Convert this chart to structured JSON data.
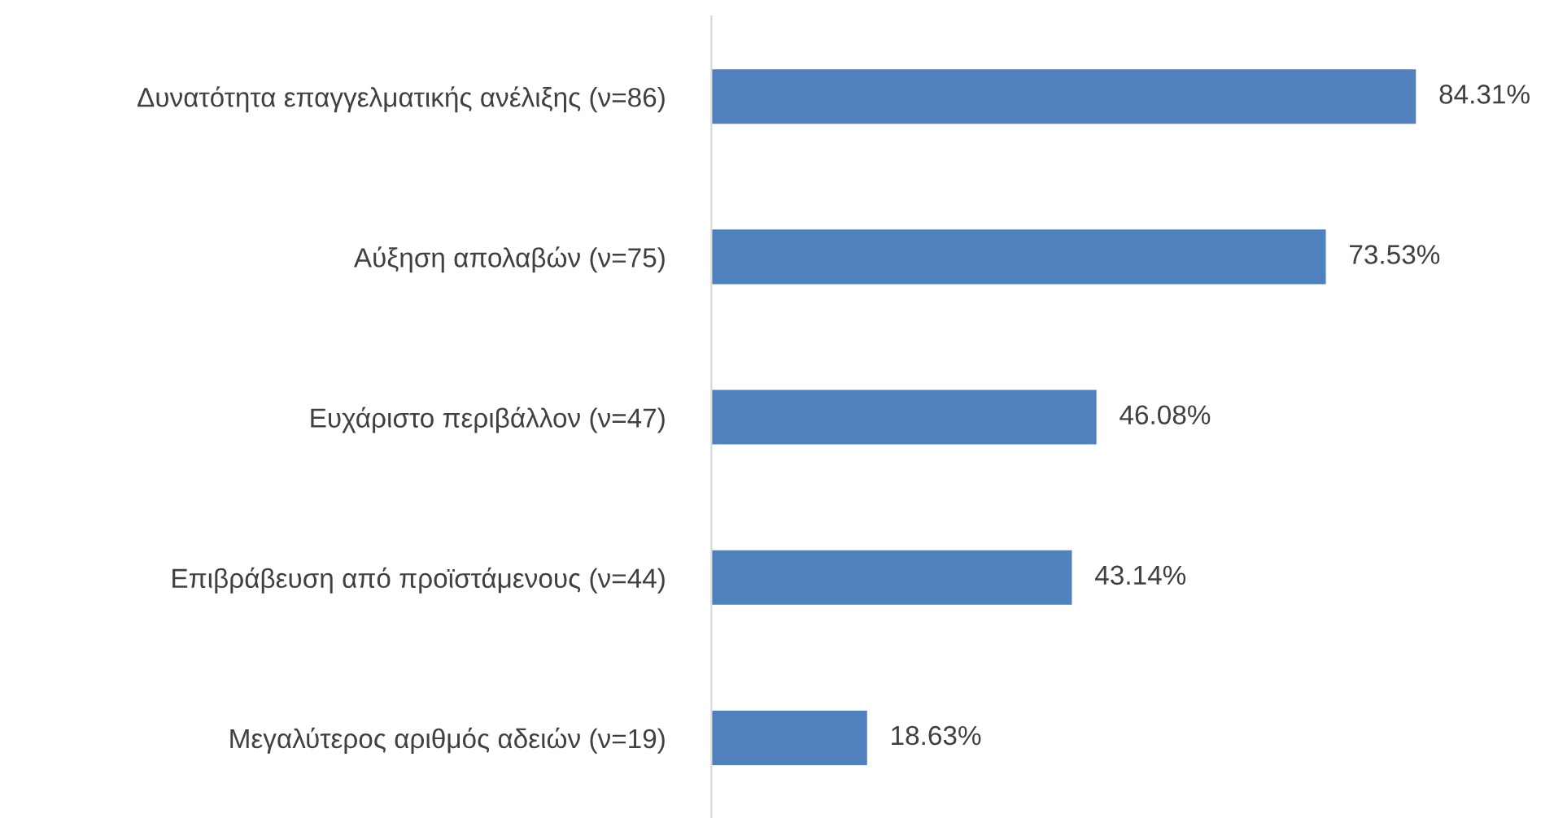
{
  "chart_data": {
    "type": "bar",
    "orientation": "horizontal",
    "categories": [
      "Δυνατότητα επαγγελματικής ανέλιξης (ν=86)",
      "Αύξηση απολαβών (ν=75)",
      "Ευχάριστο περιβάλλον (ν=47)",
      "Επιβράβευση από προϊστάμενους (ν=44)",
      "Μεγαλύτερος αριθμός αδειών (ν=19)"
    ],
    "values": [
      84.31,
      73.53,
      46.08,
      43.14,
      18.63
    ],
    "value_labels": [
      "84.31%",
      "73.53%",
      "46.08%",
      "43.14%",
      "18.63%"
    ],
    "color": "#4f81bd",
    "grid": false,
    "legend": false
  }
}
